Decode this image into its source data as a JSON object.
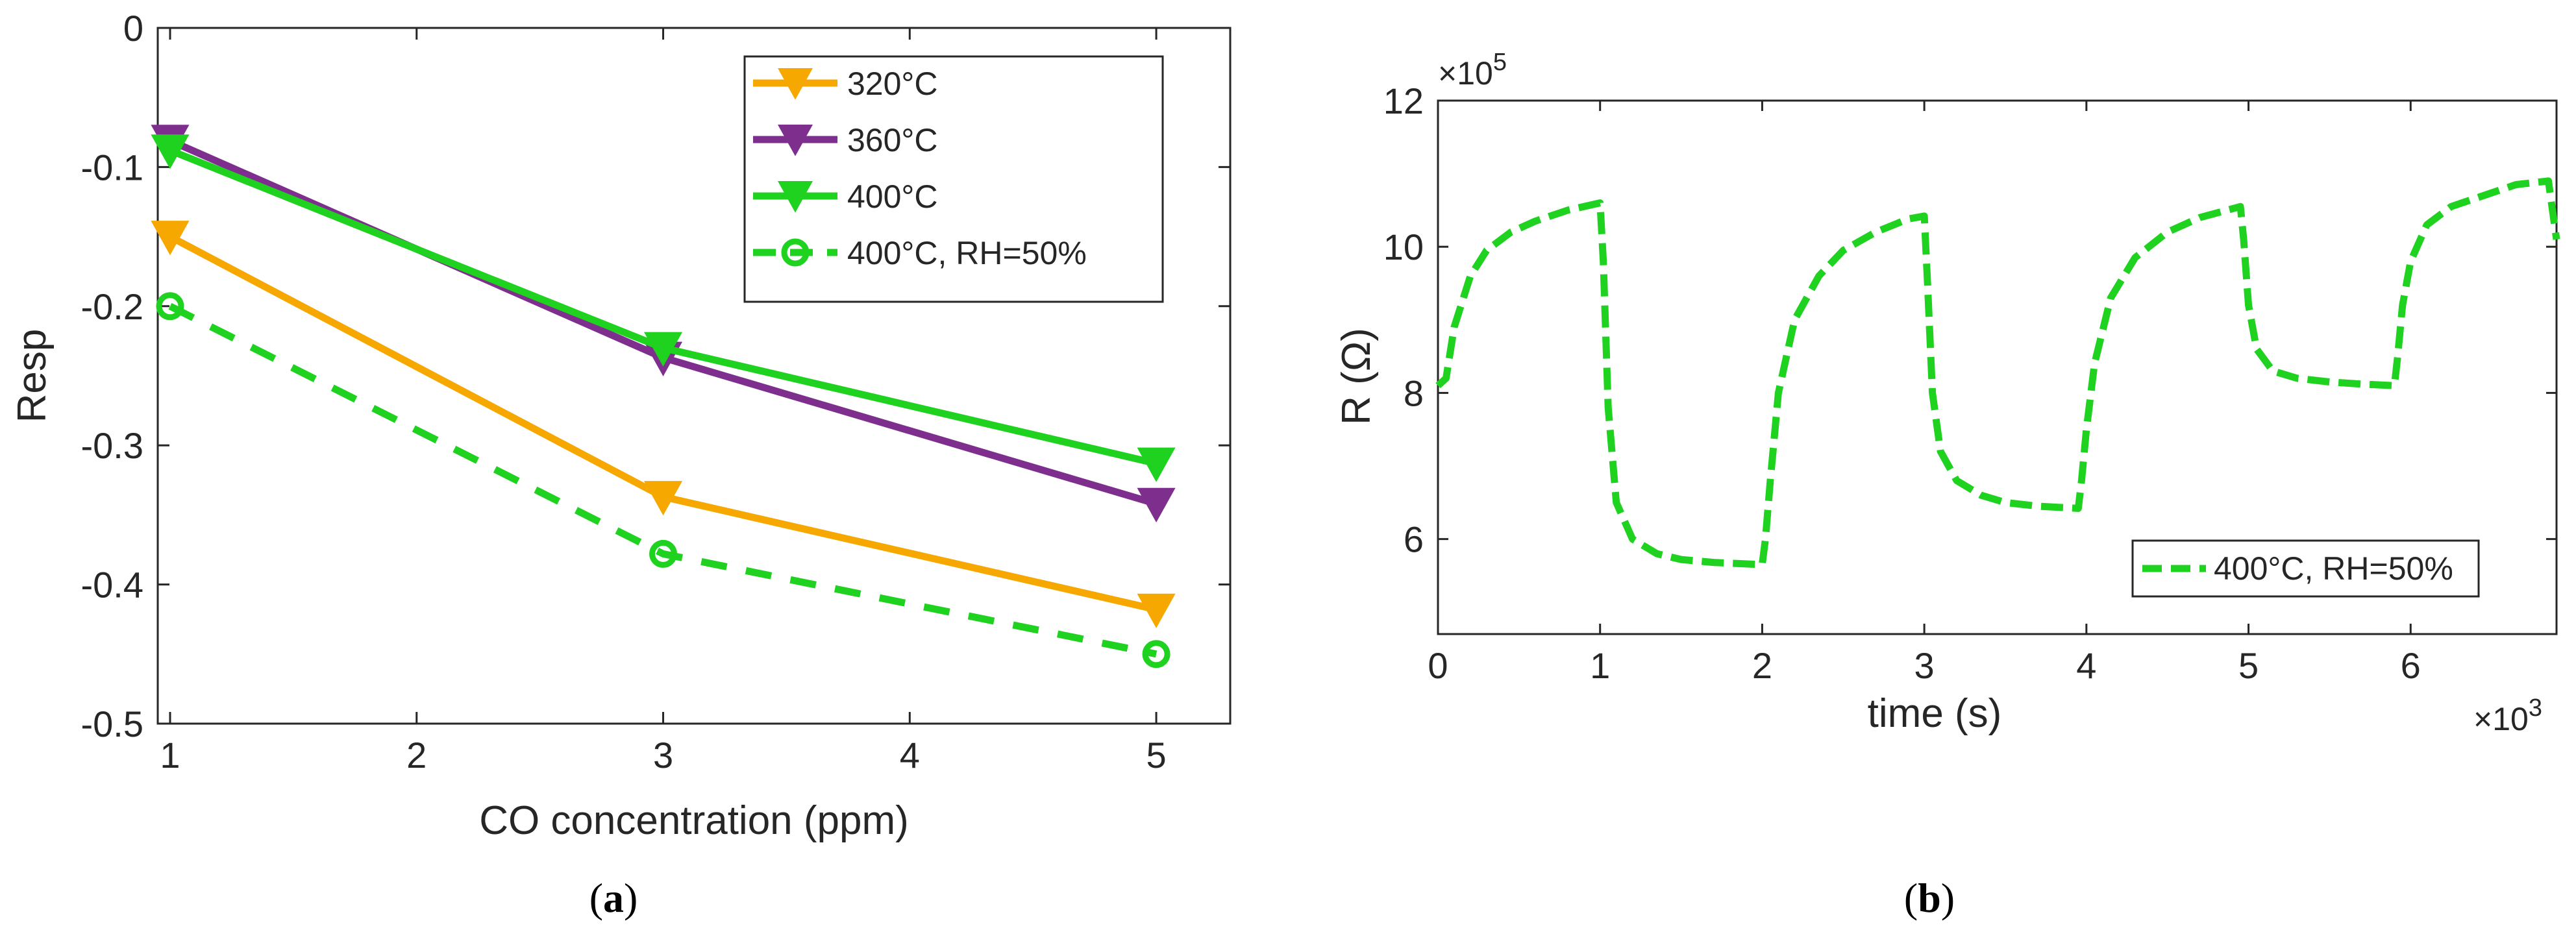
{
  "chart_data": [
    {
      "panel": "a",
      "type": "line",
      "xlabel": "CO concentration (ppm)",
      "ylabel": "Resp",
      "xlim": [
        0.95,
        5.3
      ],
      "ylim": [
        -0.5,
        0
      ],
      "x": [
        1,
        3,
        5
      ],
      "xticks": [
        1,
        2,
        3,
        4,
        5
      ],
      "xtick_labels": [
        "1",
        "2",
        "3",
        "4",
        "5"
      ],
      "yticks": [
        0,
        -0.1,
        -0.2,
        -0.3,
        -0.4,
        -0.5
      ],
      "ytick_labels": [
        "0",
        "-0.1",
        "-0.2",
        "-0.3",
        "-0.4",
        "-0.5"
      ],
      "legend_position": "top-right",
      "series": [
        {
          "name": "320°C",
          "values": [
            -0.15,
            -0.337,
            -0.418
          ],
          "color": "#F6A800",
          "marker": "triangle-down",
          "dashed": false
        },
        {
          "name": "360°C",
          "values": [
            -0.081,
            -0.237,
            -0.342
          ],
          "color": "#7E2F8E",
          "marker": "triangle-down",
          "dashed": false
        },
        {
          "name": "400°C",
          "values": [
            -0.088,
            -0.23,
            -0.313
          ],
          "color": "#1FD21F",
          "marker": "triangle-down",
          "dashed": false
        },
        {
          "name": "400°C, RH=50%",
          "values": [
            -0.2,
            -0.378,
            -0.45
          ],
          "color": "#1FD21F",
          "marker": "circle",
          "dashed": true
        }
      ],
      "caption": {
        "open": "(",
        "letter": "a",
        "close": ")"
      }
    },
    {
      "panel": "b",
      "type": "line",
      "xlabel": "time (s)",
      "ylabel": "R (Ω)",
      "xlim": [
        0,
        6.9
      ],
      "ylim": [
        4.7,
        12
      ],
      "xticks": [
        0,
        1,
        2,
        3,
        4,
        5,
        6
      ],
      "xtick_labels": [
        "0",
        "1",
        "2",
        "3",
        "4",
        "5",
        "6"
      ],
      "yticks": [
        6,
        8,
        10,
        12
      ],
      "ytick_labels": [
        "6",
        "8",
        "10",
        "12"
      ],
      "x_multiplier": {
        "base": "×10",
        "exp": "3"
      },
      "y_multiplier": {
        "base": "×10",
        "exp": "5"
      },
      "legend_position": "bottom-right",
      "series": [
        {
          "name": "400°C, RH=50%",
          "color": "#1FD21F",
          "dashed": true,
          "x": [
            0,
            0.05,
            0.1,
            0.2,
            0.3,
            0.45,
            0.6,
            0.8,
            1.0,
            1.02,
            1.05,
            1.1,
            1.2,
            1.35,
            1.5,
            1.7,
            2.0,
            2.02,
            2.05,
            2.1,
            2.2,
            2.35,
            2.5,
            2.7,
            2.9,
            3.0,
            3.02,
            3.05,
            3.1,
            3.2,
            3.35,
            3.5,
            3.7,
            3.95,
            3.97,
            4.0,
            4.05,
            4.15,
            4.3,
            4.5,
            4.7,
            4.95,
            4.97,
            5.0,
            5.05,
            5.15,
            5.3,
            5.5,
            5.7,
            5.9,
            5.92,
            5.95,
            6.0,
            6.1,
            6.25,
            6.45,
            6.65,
            6.85,
            6.9
          ],
          "values": [
            8.1,
            8.2,
            8.9,
            9.6,
            9.95,
            10.2,
            10.35,
            10.5,
            10.6,
            9.8,
            7.8,
            6.5,
            6.0,
            5.8,
            5.72,
            5.68,
            5.65,
            6.0,
            6.8,
            8.0,
            9.0,
            9.6,
            9.95,
            10.2,
            10.38,
            10.42,
            9.5,
            8.0,
            7.2,
            6.8,
            6.6,
            6.5,
            6.45,
            6.42,
            6.8,
            7.5,
            8.4,
            9.3,
            9.85,
            10.2,
            10.4,
            10.55,
            10.1,
            9.2,
            8.6,
            8.3,
            8.2,
            8.15,
            8.12,
            8.1,
            8.5,
            9.2,
            9.8,
            10.3,
            10.55,
            10.7,
            10.85,
            10.9,
            10.1
          ]
        }
      ],
      "caption": {
        "open": "(",
        "letter": "b",
        "close": ")"
      }
    }
  ]
}
